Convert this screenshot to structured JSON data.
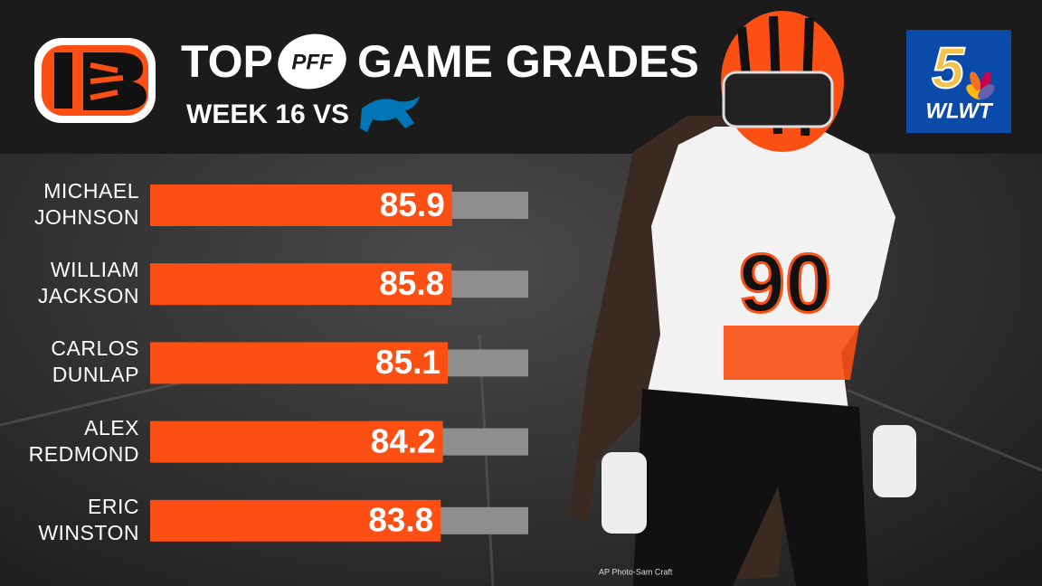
{
  "header": {
    "title_left": "TOP",
    "title_logo": "PFF",
    "title_right": "GAME GRADES",
    "subtitle": "WEEK 16 VS"
  },
  "station": {
    "channel": "5",
    "call_sign": "WLWT"
  },
  "photo": {
    "jersey": "90",
    "credit": "AP Photo-Sam Craft"
  },
  "chart_data": {
    "type": "bar",
    "categories": [
      "MICHAEL JOHNSON",
      "WILLIAM JACKSON",
      "CARLOS DUNLAP",
      "ALEX REDMOND",
      "ERIC WINSTON"
    ],
    "values": [
      85.9,
      85.8,
      85.1,
      84.2,
      83.8
    ],
    "color": "#fb4f14",
    "track_color": "#8e8e8e",
    "xlim": [
      30,
      100
    ]
  }
}
